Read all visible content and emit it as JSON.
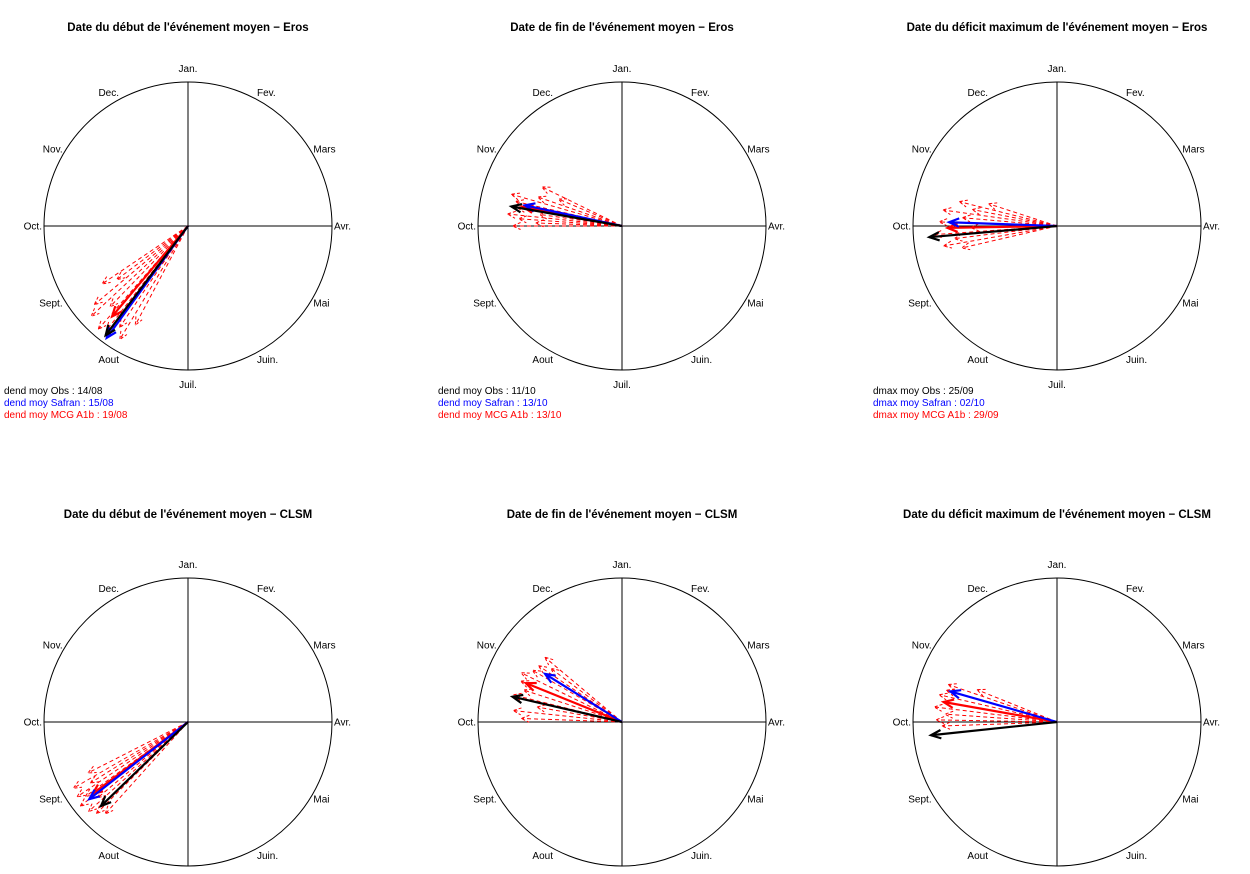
{
  "colors": {
    "obs": "#000000",
    "safran": "#0000ff",
    "mcg": "#ff0000"
  },
  "chart_data": [
    {
      "type": "polar-arrows",
      "title": "Date du début de l'événement moyen  −  Eros",
      "months": [
        "Jan.",
        "Fev.",
        "Mars",
        "Avr.",
        "Mai",
        "Juin.",
        "Juil.",
        "Aout",
        "Sept.",
        "Oct.",
        "Nov.",
        "Dec."
      ],
      "arrows": {
        "obs": {
          "angle": 217,
          "length": 0.95
        },
        "safran": {
          "angle": 216,
          "length": 0.96
        },
        "mcg": {
          "angle": 220,
          "length": 0.82
        }
      },
      "members": [
        {
          "angle": 208,
          "length": 0.78
        },
        {
          "angle": 211,
          "length": 0.92
        },
        {
          "angle": 214,
          "length": 0.85
        },
        {
          "angle": 218,
          "length": 0.92
        },
        {
          "angle": 221,
          "length": 0.95
        },
        {
          "angle": 224,
          "length": 0.78
        },
        {
          "angle": 227,
          "length": 0.92
        },
        {
          "angle": 230,
          "length": 0.85
        },
        {
          "angle": 233,
          "length": 0.62
        },
        {
          "angle": 236,
          "length": 0.72
        }
      ],
      "legend": [
        {
          "series": "obs",
          "text": "dend moy Obs :  14/08"
        },
        {
          "series": "safran",
          "text": "dend moy Safran :  15/08"
        },
        {
          "series": "mcg",
          "text": "dend moy  MCG A1b :  19/08"
        }
      ]
    },
    {
      "type": "polar-arrows",
      "title": "Date de fin de l'événement moyen −  Eros",
      "months": [
        "Jan.",
        "Fev.",
        "Mars",
        "Avr.",
        "Mai",
        "Juin.",
        "Juil.",
        "Aout",
        "Sept.",
        "Oct.",
        "Nov.",
        "Dec."
      ],
      "arrows": {
        "obs": {
          "angle": 280,
          "length": 0.78
        },
        "safran": {
          "angle": 282,
          "length": 0.69
        },
        "mcg": {
          "angle": 281,
          "length": 0.7
        }
      },
      "members": [
        {
          "angle": 270,
          "length": 0.76
        },
        {
          "angle": 272,
          "length": 0.6
        },
        {
          "angle": 274,
          "length": 0.72
        },
        {
          "angle": 276,
          "length": 0.8
        },
        {
          "angle": 278,
          "length": 0.58
        },
        {
          "angle": 280,
          "length": 0.74
        },
        {
          "angle": 283,
          "length": 0.76
        },
        {
          "angle": 286,
          "length": 0.8
        },
        {
          "angle": 289,
          "length": 0.62
        },
        {
          "angle": 293,
          "length": 0.48
        },
        {
          "angle": 296,
          "length": 0.62
        }
      ],
      "legend": [
        {
          "series": "obs",
          "text": "dend moy Obs :  11/10"
        },
        {
          "series": "safran",
          "text": "dend moy Safran :  13/10"
        },
        {
          "series": "mcg",
          "text": "dend moy  MCG A1b :  13/10"
        }
      ]
    },
    {
      "type": "polar-arrows",
      "title": "Date du déficit maximum de l'événement moyen −  Eros",
      "months": [
        "Jan.",
        "Fev.",
        "Mars",
        "Avr.",
        "Mai",
        "Juin.",
        "Juil.",
        "Aout",
        "Sept.",
        "Oct.",
        "Nov.",
        "Dec."
      ],
      "arrows": {
        "obs": {
          "angle": 265,
          "length": 0.89
        },
        "safran": {
          "angle": 272,
          "length": 0.75
        },
        "mcg": {
          "angle": 269,
          "length": 0.76
        }
      },
      "members": [
        {
          "angle": 257,
          "length": 0.68
        },
        {
          "angle": 260,
          "length": 0.8
        },
        {
          "angle": 263,
          "length": 0.72
        },
        {
          "angle": 266,
          "length": 0.86
        },
        {
          "angle": 269,
          "length": 0.6
        },
        {
          "angle": 272,
          "length": 0.82
        },
        {
          "angle": 275,
          "length": 0.66
        },
        {
          "angle": 278,
          "length": 0.8
        },
        {
          "angle": 281,
          "length": 0.6
        },
        {
          "angle": 284,
          "length": 0.7
        },
        {
          "angle": 288,
          "length": 0.5
        }
      ],
      "legend": [
        {
          "series": "obs",
          "text": "dmax moy Obs :  25/09"
        },
        {
          "series": "safran",
          "text": "dmax moy Safran :  02/10"
        },
        {
          "series": "mcg",
          "text": "dmax moy  MCG A1b :  29/09"
        }
      ]
    },
    {
      "type": "polar-arrows",
      "title": "Date du début de l'événement moyen  −  CLSM",
      "months": [
        "Jan.",
        "Fev.",
        "Mars",
        "Avr.",
        "Mai",
        "Juin.",
        "Juil.",
        "Aout",
        "Sept.",
        "Oct.",
        "Nov.",
        "Dec."
      ],
      "arrows": {
        "obs": {
          "angle": 226,
          "length": 0.84
        },
        "safran": {
          "angle": 232,
          "length": 0.87
        },
        "mcg": {
          "angle": 233,
          "length": 0.83
        }
      },
      "members": [
        {
          "angle": 222,
          "length": 0.86
        },
        {
          "angle": 225,
          "length": 0.9
        },
        {
          "angle": 228,
          "length": 0.93
        },
        {
          "angle": 230,
          "length": 0.82
        },
        {
          "angle": 232,
          "length": 0.95
        },
        {
          "angle": 234,
          "length": 0.88
        },
        {
          "angle": 236,
          "length": 0.93
        },
        {
          "angle": 238,
          "length": 0.8
        },
        {
          "angle": 240,
          "length": 0.92
        },
        {
          "angle": 243,
          "length": 0.78
        }
      ],
      "legend": []
    },
    {
      "type": "polar-arrows",
      "title": "Date de fin de l'événement moyen −  CLSM",
      "months": [
        "Jan.",
        "Fev.",
        "Mars",
        "Avr.",
        "Mai",
        "Juin.",
        "Juil.",
        "Aout",
        "Sept.",
        "Oct.",
        "Nov.",
        "Dec."
      ],
      "arrows": {
        "obs": {
          "angle": 283,
          "length": 0.78
        },
        "safran": {
          "angle": 302,
          "length": 0.63
        },
        "mcg": {
          "angle": 292,
          "length": 0.72
        }
      },
      "members": [
        {
          "angle": 272,
          "length": 0.7
        },
        {
          "angle": 276,
          "length": 0.76
        },
        {
          "angle": 280,
          "length": 0.6
        },
        {
          "angle": 284,
          "length": 0.78
        },
        {
          "angle": 288,
          "length": 0.72
        },
        {
          "angle": 292,
          "length": 0.76
        },
        {
          "angle": 296,
          "length": 0.78
        },
        {
          "angle": 300,
          "length": 0.72
        },
        {
          "angle": 304,
          "length": 0.7
        },
        {
          "angle": 307,
          "length": 0.62
        },
        {
          "angle": 310,
          "length": 0.7
        }
      ],
      "legend": []
    },
    {
      "type": "polar-arrows",
      "title": "Date du déficit maximum de l'événement moyen −  CLSM",
      "months": [
        "Jan.",
        "Fev.",
        "Mars",
        "Avr.",
        "Mai",
        "Juin.",
        "Juil.",
        "Aout",
        "Sept.",
        "Oct.",
        "Nov.",
        "Dec."
      ],
      "arrows": {
        "obs": {
          "angle": 264,
          "length": 0.88
        },
        "safran": {
          "angle": 286,
          "length": 0.77
        },
        "mcg": {
          "angle": 280,
          "length": 0.8
        }
      },
      "members": [
        {
          "angle": 268,
          "length": 0.8
        },
        {
          "angle": 271,
          "length": 0.84
        },
        {
          "angle": 274,
          "length": 0.78
        },
        {
          "angle": 277,
          "length": 0.86
        },
        {
          "angle": 280,
          "length": 0.8
        },
        {
          "angle": 283,
          "length": 0.84
        },
        {
          "angle": 286,
          "length": 0.8
        },
        {
          "angle": 289,
          "length": 0.8
        },
        {
          "angle": 292,
          "length": 0.6
        }
      ],
      "legend": []
    }
  ]
}
